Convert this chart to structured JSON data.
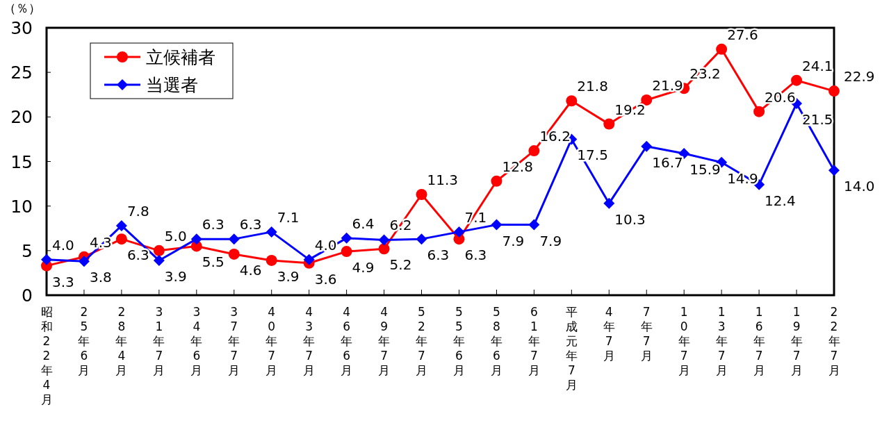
{
  "chart_data": {
    "type": "line",
    "ylabel": "（％）",
    "categories": [
      "昭和22年4月",
      "25年6月",
      "28年4月",
      "31年7月",
      "34年6月",
      "37年7月",
      "40年7月",
      "43年7月",
      "46年6月",
      "49年7月",
      "52年7月",
      "55年6月",
      "58年6月",
      "61年7月",
      "平成元年7月",
      "4年7月",
      "7年7月",
      "10年7月",
      "13年7月",
      "16年7月",
      "19年7月",
      "22年7月"
    ],
    "series": [
      {
        "name": "立候補者",
        "color": "#ff0000",
        "marker": "circle",
        "values": [
          3.3,
          4.3,
          6.3,
          5.0,
          5.5,
          4.6,
          3.9,
          3.6,
          4.9,
          5.2,
          11.3,
          6.3,
          12.8,
          16.2,
          21.8,
          19.2,
          21.9,
          23.2,
          27.6,
          20.6,
          24.1,
          22.9
        ],
        "value_labels": [
          "3.3",
          "4.3",
          "6.3",
          "5.0",
          "5.5",
          "4.6",
          "3.9",
          "3.6",
          "4.9",
          "5.2",
          "11.3",
          "6.3",
          "12.8",
          "16.2",
          "21.8",
          "19.2",
          "21.9",
          "23.2",
          "27.6",
          "20.6",
          "24.1",
          "22.9"
        ]
      },
      {
        "name": "当選者",
        "color": "#0000ff",
        "marker": "diamond",
        "values": [
          4.0,
          3.8,
          7.8,
          3.9,
          6.3,
          6.3,
          7.1,
          4.0,
          6.4,
          6.2,
          6.3,
          7.1,
          7.9,
          7.9,
          17.5,
          10.3,
          16.7,
          15.9,
          14.9,
          12.4,
          21.5,
          14.0
        ],
        "value_labels": [
          "4.0",
          "3.8",
          "7.8",
          "3.9",
          "6.3",
          "6.3",
          "7.1",
          "4.0",
          "6.4",
          "6.2",
          "6.3",
          "7.1",
          "7.9",
          "7.9",
          "17.5",
          "10.3",
          "16.7",
          "15.9",
          "14.9",
          "12.4",
          "21.5",
          "14.0"
        ]
      }
    ],
    "ylim": [
      0,
      30
    ],
    "yticks": [
      0,
      5,
      10,
      15,
      20,
      25,
      30
    ],
    "legend": "top left",
    "grid": false
  }
}
